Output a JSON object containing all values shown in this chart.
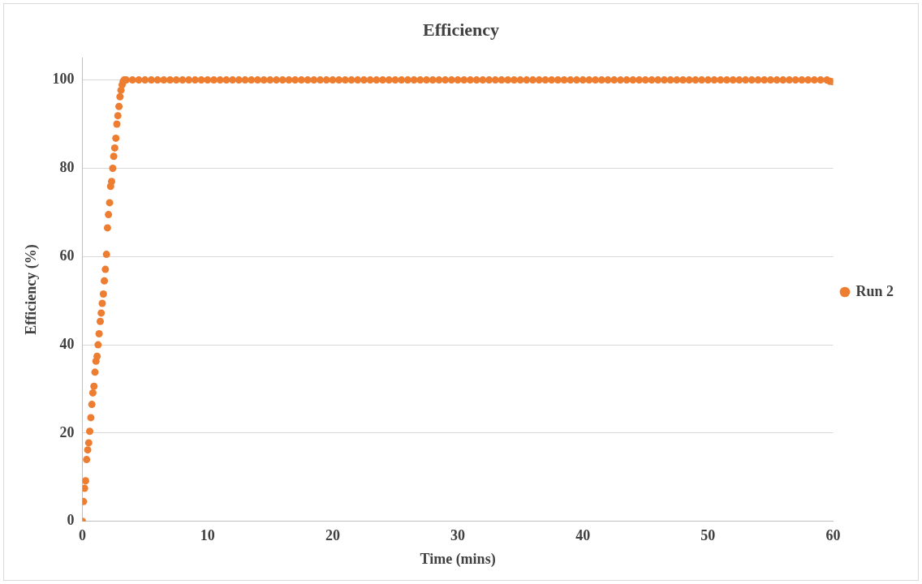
{
  "chart_data": {
    "type": "scatter",
    "title": "Efficiency",
    "xlabel": "Time (mins)",
    "ylabel": "Efficiency (%)",
    "xlim": [
      0,
      60
    ],
    "xticks": [
      0,
      10,
      20,
      30,
      40,
      50,
      60
    ],
    "ylim": [
      0,
      105
    ],
    "yticks": [
      0,
      20,
      40,
      60,
      80,
      100
    ],
    "grid": "y",
    "legend": "right",
    "marker": "circle",
    "series": [
      {
        "name": "Run 2",
        "color": "#ed7d31",
        "x": [
          0,
          0.08,
          0.17,
          0.25,
          0.33,
          0.42,
          0.5,
          0.58,
          0.67,
          0.75,
          0.83,
          0.92,
          1,
          1.08,
          1.17,
          1.25,
          1.33,
          1.42,
          1.5,
          1.58,
          1.67,
          1.75,
          1.83,
          1.92,
          2,
          2.08,
          2.17,
          2.25,
          2.33,
          2.42,
          2.5,
          2.58,
          2.67,
          2.75,
          2.83,
          2.92,
          3,
          3.08,
          3.17,
          3.25,
          3.33,
          3.5,
          4,
          4.5,
          5,
          5.5,
          6,
          6.5,
          7,
          7.5,
          8,
          8.5,
          9,
          9.5,
          10,
          10.5,
          11,
          11.5,
          12,
          12.5,
          13,
          13.5,
          14,
          14.5,
          15,
          15.5,
          16,
          16.5,
          17,
          17.5,
          18,
          18.5,
          19,
          19.5,
          20,
          20.5,
          21,
          21.5,
          22,
          22.5,
          23,
          23.5,
          24,
          24.5,
          25,
          25.5,
          26,
          26.5,
          27,
          27.5,
          28,
          28.5,
          29,
          29.5,
          30,
          30.5,
          31,
          31.5,
          32,
          32.5,
          33,
          33.5,
          34,
          34.5,
          35,
          35.5,
          36,
          36.5,
          37,
          37.5,
          38,
          38.5,
          39,
          39.5,
          40,
          40.5,
          41,
          41.5,
          42,
          42.5,
          43,
          43.5,
          44,
          44.5,
          45,
          45.5,
          46,
          46.5,
          47,
          47.5,
          48,
          48.5,
          49,
          49.5,
          50,
          50.5,
          51,
          51.5,
          52,
          52.5,
          53,
          53.5,
          54,
          54.5,
          55,
          55.5,
          56,
          56.5,
          57,
          57.5,
          58,
          58.5,
          59,
          59.5,
          59.75,
          60
        ],
        "values": [
          0,
          4.5,
          7.5,
          9.2,
          14,
          16.2,
          17.8,
          20.4,
          23.5,
          26.5,
          29.1,
          30.6,
          33.8,
          36.3,
          37.4,
          40,
          42.5,
          45.3,
          47.2,
          49.4,
          51.5,
          54.5,
          57.1,
          60.5,
          66.5,
          69.5,
          72.2,
          75.9,
          77,
          80,
          82.7,
          84.6,
          86.8,
          90,
          91.9,
          94,
          96.2,
          97.7,
          98.9,
          99.6,
          100,
          100,
          100,
          100,
          100,
          100,
          100,
          100,
          100,
          100,
          100,
          100,
          100,
          100,
          100,
          100,
          100,
          100,
          100,
          100,
          100,
          100,
          100,
          100,
          100,
          100,
          100,
          100,
          100,
          100,
          100,
          100,
          100,
          100,
          100,
          100,
          100,
          100,
          100,
          100,
          100,
          100,
          100,
          100,
          100,
          100,
          100,
          100,
          100,
          100,
          100,
          100,
          100,
          100,
          100,
          100,
          100,
          100,
          100,
          100,
          100,
          100,
          100,
          100,
          100,
          100,
          100,
          100,
          100,
          100,
          100,
          100,
          100,
          100,
          100,
          100,
          100,
          100,
          100,
          100,
          100,
          100,
          100,
          100,
          100,
          100,
          100,
          100,
          100,
          100,
          100,
          100,
          100,
          100,
          100,
          100,
          100,
          100,
          100,
          100,
          100,
          100,
          100,
          100,
          100,
          100,
          100,
          100,
          100,
          100,
          100,
          100,
          100,
          100,
          99.7,
          99.6
        ]
      }
    ]
  }
}
